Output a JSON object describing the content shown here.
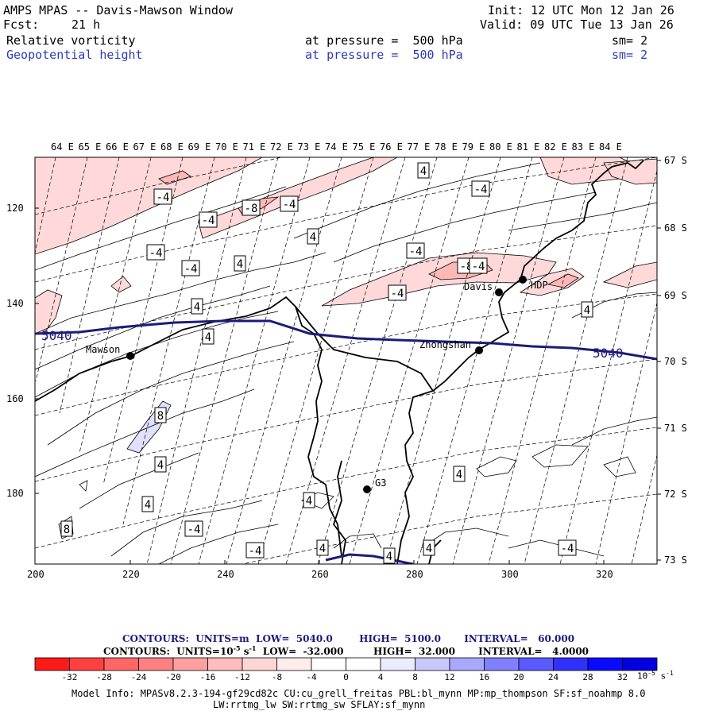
{
  "header": {
    "title": "AMPS MPAS -- Davis-Mawson Window",
    "fcst_label": "Fcst:",
    "fcst_value": "21 h",
    "init": "Init: 12 UTC Mon 12 Jan 26",
    "valid": "Valid: 09 UTC Tue 13 Jan 26",
    "field1": "Relative vorticity",
    "field2": "Geopotential height",
    "pressure1": "at pressure =  500 hPa",
    "pressure2": "at pressure =  500 hPa",
    "sm1": "sm= 2",
    "sm2": "sm= 2"
  },
  "map": {
    "top_labels": [
      "64 E",
      "65 E",
      "66 E",
      "67 E",
      "68 E",
      "69 E",
      "70 E",
      "71 E",
      "72 E",
      "73 E",
      "74 E",
      "75 E",
      "76 E",
      "77 E",
      "78 E",
      "79 E",
      "80 E",
      "81 E",
      "82 E",
      "83 E",
      "84 E"
    ],
    "right_labels": [
      "67 S",
      "68 S",
      "69 S",
      "70 S",
      "71 S",
      "72 S",
      "73 S"
    ],
    "left_ticks": [
      "120",
      "140",
      "160",
      "180"
    ],
    "bottom_ticks": [
      "200",
      "220",
      "240",
      "260",
      "280",
      "300",
      "320"
    ],
    "stations": {
      "mawson": "Mawson",
      "davis": "Davis",
      "hdp": "HDP",
      "zhongshan": "Zhongshan",
      "g3": "G3"
    },
    "height_labels": [
      "5040",
      "5040"
    ],
    "vort_labels": [
      "-4",
      "-4",
      "-8",
      "-4",
      "-4",
      "-4",
      "-4",
      "4",
      "4",
      "-4",
      "4",
      "4",
      "-4",
      "-8",
      "-4",
      "4",
      "4",
      "8",
      "4",
      "4",
      "-4",
      "8",
      "4",
      "4",
      "-4",
      "4",
      "4",
      "4",
      "4",
      "-4",
      "4"
    ]
  },
  "legend": {
    "line1_contours": "CONTOURS:",
    "line1_units": "UNITS=m",
    "line1_low": "LOW=  5040.0",
    "line1_high": "HIGH=  5100.0",
    "line1_interval": "INTERVAL=   60.000",
    "line2_contours": "CONTOURS:",
    "line2_units": "UNITS=10",
    "line2_units_exp": "-5",
    "line2_units_s": "s",
    "line2_units_s_exp": "-1",
    "line2_low": "LOW=  -32.000",
    "line2_high": "HIGH=  32.000",
    "line2_interval": "INTERVAL=   4.0000",
    "colorbar_colors": [
      "#ff1a1a",
      "#ff4040",
      "#ff6666",
      "#ff8080",
      "#ffa0a0",
      "#ffbcbc",
      "#ffd6d6",
      "#ffecec",
      "#ffffff",
      "#ffffff",
      "#ececff",
      "#c8c8ff",
      "#a8a8ff",
      "#8080ff",
      "#5a5aff",
      "#3030ff",
      "#0a0aff",
      "#0000e0"
    ],
    "colorbar_labels": [
      "-32",
      "-28",
      "-24",
      "-20",
      "-16",
      "-12",
      "-8",
      "-4",
      "0",
      "4",
      "8",
      "12",
      "16",
      "20",
      "24",
      "28",
      "32"
    ],
    "colorbar_unit": "10",
    "colorbar_unit_exp": "-5",
    "colorbar_unit_s": "s",
    "colorbar_unit_s_exp": "-1"
  },
  "footer": {
    "line1": "Model Info: MPASv8.2.3-194-gf29cd82c CU:cu_grell_freitas PBL:bl_mynn MP:mp_thompson SF:sf_noahmp 8.0",
    "line2": "LW:rrtmg_lw SW:rrtmg_sw SFLAY:sf_mynn"
  }
}
